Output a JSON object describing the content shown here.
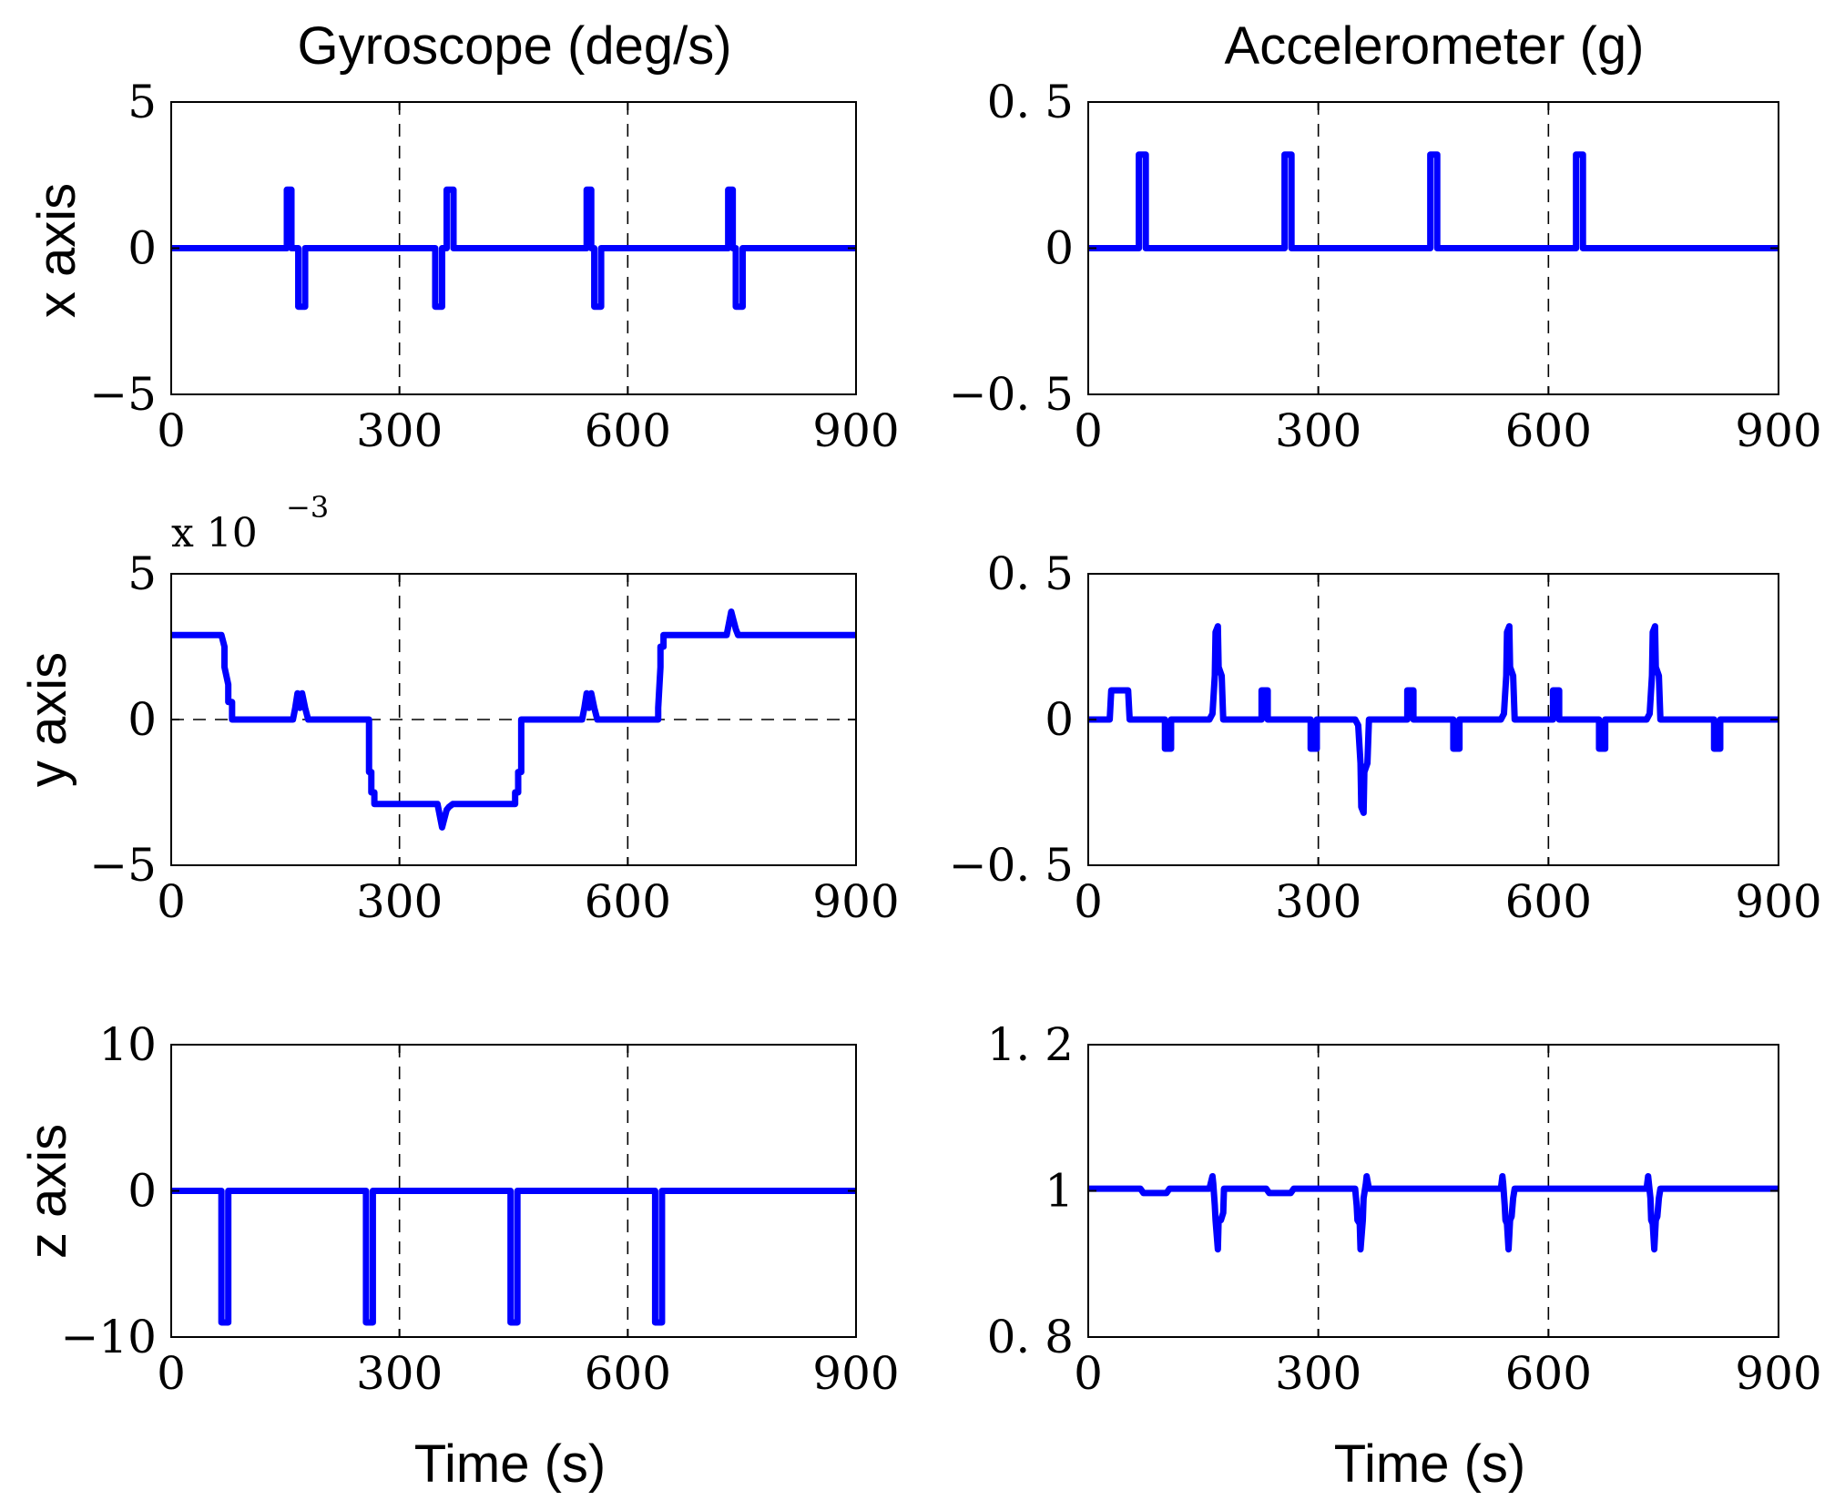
{
  "chart_data": [
    {
      "type": "line",
      "panel": "gyro-x",
      "title": "Gyroscope (deg/s)",
      "ylabel": "x axis",
      "xlabel": "",
      "xlim": [
        0,
        900
      ],
      "ylim": [
        -5,
        5
      ],
      "xticks": [
        "0",
        "300",
        "600",
        "900"
      ],
      "yticks": [
        "5",
        "0",
        "−5"
      ],
      "ytick_values": [
        5,
        0,
        -5
      ],
      "x": [
        0,
        152,
        152,
        158,
        158,
        167,
        167,
        176,
        176,
        347,
        347,
        356,
        356,
        362,
        362,
        371,
        371,
        546,
        546,
        552,
        552,
        556,
        556,
        565,
        565,
        732,
        732,
        738,
        738,
        742,
        742,
        751,
        751,
        900
      ],
      "y": [
        0,
        0,
        2,
        2,
        0,
        0,
        -2,
        -2,
        0,
        0,
        -2,
        -2,
        0,
        0,
        2,
        2,
        0,
        0,
        2,
        2,
        0,
        0,
        -2,
        -2,
        0,
        0,
        2,
        2,
        0,
        0,
        -2,
        -2,
        0,
        0
      ]
    },
    {
      "type": "line",
      "panel": "accel-x",
      "title": "Accelerometer (g)",
      "ylabel": "",
      "xlabel": "",
      "xlim": [
        0,
        900
      ],
      "ylim": [
        -0.5,
        0.5
      ],
      "xticks": [
        "0",
        "300",
        "600",
        "900"
      ],
      "yticks": [
        "0. 5",
        "0",
        "−0. 5"
      ],
      "ytick_values": [
        0.5,
        0,
        -0.5
      ],
      "x": [
        0,
        66,
        66,
        75,
        75,
        256,
        256,
        265,
        265,
        446,
        446,
        455,
        455,
        636,
        636,
        645,
        645,
        900
      ],
      "y": [
        0,
        0,
        0.32,
        0.32,
        0,
        0,
        0.32,
        0.32,
        0,
        0,
        0.32,
        0.32,
        0,
        0,
        0.32,
        0.32,
        0,
        0
      ]
    },
    {
      "type": "line",
      "panel": "gyro-y",
      "ylabel": "y axis",
      "xlabel": "",
      "multiplier": {
        "base": "x  10",
        "exponent": "−3"
      },
      "xlim": [
        0,
        900
      ],
      "ylim": [
        -5,
        5
      ],
      "xticks": [
        "0",
        "300",
        "600",
        "900"
      ],
      "yticks": [
        "5",
        "0",
        "−5"
      ],
      "ytick_values": [
        5,
        0,
        -5
      ],
      "hline": 0,
      "x": [
        0,
        66,
        70,
        70,
        75,
        75,
        80,
        80,
        160,
        163,
        166,
        169,
        172,
        176,
        180,
        260,
        260,
        263,
        263,
        267,
        267,
        350,
        353,
        356,
        359,
        362,
        365,
        370,
        452,
        452,
        456,
        456,
        460,
        460,
        540,
        543,
        546,
        549,
        552,
        556,
        560,
        640,
        640,
        643,
        643,
        647,
        647,
        730,
        733,
        736,
        739,
        742,
        745,
        750,
        900
      ],
      "y": [
        2.9,
        2.9,
        2.5,
        1.8,
        1.2,
        0.6,
        0.6,
        0,
        0,
        0.4,
        0.9,
        0.4,
        0.9,
        0.4,
        0,
        0,
        -1.8,
        -1.8,
        -2.5,
        -2.5,
        -2.9,
        -2.9,
        -3.3,
        -3.7,
        -3.4,
        -3.1,
        -3.0,
        -2.9,
        -2.9,
        -2.5,
        -2.5,
        -1.8,
        -1.8,
        0,
        0,
        0.4,
        0.9,
        0.4,
        0.9,
        0.4,
        0,
        0,
        0.4,
        1.8,
        2.5,
        2.5,
        2.9,
        2.9,
        3.3,
        3.7,
        3.4,
        3.1,
        2.9,
        2.9,
        2.9
      ]
    },
    {
      "type": "line",
      "panel": "accel-y",
      "ylabel": "",
      "xlabel": "",
      "xlim": [
        0,
        900
      ],
      "ylim": [
        -0.5,
        0.5
      ],
      "xticks": [
        "0",
        "300",
        "600",
        "900"
      ],
      "yticks": [
        "0. 5",
        "0",
        "−0. 5"
      ],
      "ytick_values": [
        0.5,
        0,
        -0.5
      ],
      "x": [
        0,
        28,
        30,
        52,
        54,
        100,
        100,
        108,
        108,
        158,
        162,
        165,
        166,
        169,
        170,
        174,
        176,
        226,
        226,
        234,
        234,
        290,
        290,
        298,
        298,
        348,
        352,
        355,
        356,
        359,
        360,
        364,
        366,
        416,
        416,
        424,
        424,
        476,
        476,
        484,
        484,
        538,
        542,
        545,
        546,
        549,
        550,
        554,
        556,
        606,
        606,
        614,
        614,
        666,
        666,
        674,
        674,
        728,
        732,
        735,
        736,
        739,
        740,
        744,
        746,
        816,
        816,
        824,
        824,
        900
      ],
      "y": [
        0,
        0,
        0.1,
        0.1,
        0,
        0,
        -0.1,
        -0.1,
        0,
        0,
        0.02,
        0.15,
        0.3,
        0.32,
        0.18,
        0.15,
        0,
        0,
        0.1,
        0.1,
        0,
        0,
        -0.1,
        -0.1,
        0,
        0,
        -0.02,
        -0.15,
        -0.3,
        -0.32,
        -0.18,
        -0.15,
        0,
        0,
        0.1,
        0.1,
        0,
        0,
        -0.1,
        -0.1,
        0,
        0,
        0.02,
        0.15,
        0.3,
        0.32,
        0.18,
        0.15,
        0,
        0,
        0.1,
        0.1,
        0,
        0,
        -0.1,
        -0.1,
        0,
        0,
        0.02,
        0.15,
        0.3,
        0.32,
        0.18,
        0.15,
        0,
        0,
        -0.1,
        -0.1,
        0,
        0
      ]
    },
    {
      "type": "line",
      "panel": "gyro-z",
      "ylabel": "z axis",
      "xlabel": "Time (s)",
      "xlim": [
        0,
        900
      ],
      "ylim": [
        -10,
        10
      ],
      "xticks": [
        "0",
        "300",
        "600",
        "900"
      ],
      "yticks": [
        "10",
        "0",
        "−10"
      ],
      "ytick_values": [
        10,
        0,
        -10
      ],
      "x": [
        0,
        66,
        66,
        75,
        75,
        256,
        256,
        265,
        265,
        446,
        446,
        455,
        455,
        636,
        636,
        645,
        645,
        900
      ],
      "y": [
        0,
        0,
        -9,
        -9,
        0,
        0,
        -9,
        -9,
        0,
        0,
        -9,
        -9,
        0,
        0,
        -9,
        -9,
        0,
        0
      ]
    },
    {
      "type": "line",
      "panel": "accel-z",
      "ylabel": "",
      "xlabel": "Time (s)",
      "xlim": [
        0,
        900
      ],
      "ylim": [
        0.8,
        1.2
      ],
      "xticks": [
        "0",
        "300",
        "600",
        "900"
      ],
      "yticks": [
        "1. 2",
        "1",
        "0. 8"
      ],
      "ytick_values": [
        1.2,
        1.0,
        0.8
      ],
      "x": [
        0,
        68,
        72,
        102,
        106,
        158,
        162,
        163,
        165,
        166,
        169,
        170,
        173,
        176,
        177,
        180,
        232,
        236,
        264,
        268,
        348,
        350,
        351,
        354,
        355,
        358,
        359,
        362,
        363,
        366,
        368,
        538,
        540,
        541,
        543,
        544,
        546,
        548,
        550,
        552,
        554,
        556,
        728,
        730,
        731,
        733,
        734,
        736,
        738,
        740,
        742,
        744,
        746,
        900
      ],
      "y": [
        1.003,
        1.003,
        0.997,
        0.997,
        1.003,
        1.003,
        1.02,
        1.01,
        0.98,
        0.96,
        0.92,
        0.96,
        0.96,
        0.97,
        1.003,
        1.003,
        1.003,
        0.997,
        0.997,
        1.003,
        1.003,
        0.98,
        0.96,
        0.955,
        0.92,
        0.96,
        0.99,
        1.01,
        1.02,
        1.003,
        1.003,
        1.003,
        1.02,
        1.01,
        0.98,
        0.96,
        0.955,
        0.92,
        0.96,
        0.965,
        0.99,
        1.003,
        1.003,
        1.02,
        1.01,
        0.99,
        0.96,
        0.955,
        0.92,
        0.96,
        0.965,
        0.99,
        1.003,
        1.003
      ]
    }
  ],
  "colors": {
    "trace": "#0000ff",
    "axes": "#000000",
    "background": "#ffffff"
  }
}
